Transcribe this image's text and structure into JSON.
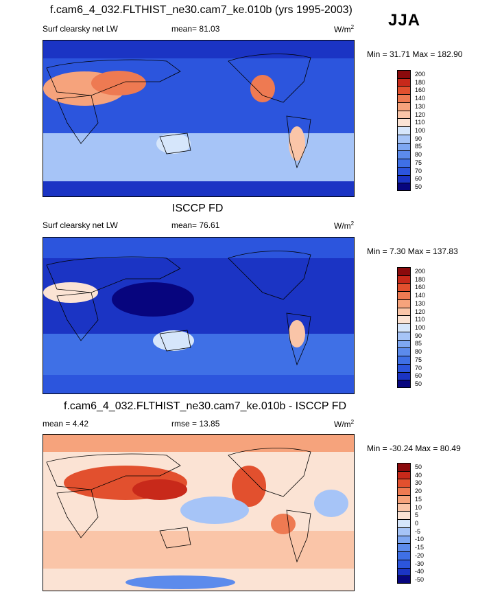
{
  "figure": {
    "season": "JJA",
    "top_title": "f.cam6_4_032.FLTHIST_ne30.cam7_ke.010b (yrs 1995-2003)",
    "mid_title": "ISCCP FD",
    "bottom_title": "f.cam6_4_032.FLTHIST_ne30.cam7_ke.010b - ISCCP FD"
  },
  "panels": [
    {
      "left_label": "Surf clearsky net LW",
      "center_label": "mean=  81.03",
      "units": "W/m",
      "units_exp": "2",
      "minmax": "Min =  31.71 Max = 182.90"
    },
    {
      "left_label": "Surf clearsky net LW",
      "center_label": "mean=  76.61",
      "units": "W/m",
      "units_exp": "2",
      "minmax": "Min =   7.30 Max = 137.83"
    },
    {
      "left_label": "mean =   4.42",
      "center_label": "rmse =  13.85",
      "units": "W/m",
      "units_exp": "2",
      "minmax": "Min = -30.24 Max =  80.49"
    }
  ],
  "chart_data": [
    {
      "type": "heatmap",
      "title": "f.cam6_4_032.FLTHIST_ne30.cam7_ke.010b (yrs 1995-2003)",
      "variable": "Surf clearsky net LW",
      "units": "W/m2",
      "mean": 81.03,
      "min": 31.71,
      "max": 182.9,
      "levels": [
        50,
        60,
        70,
        75,
        80,
        85,
        90,
        100,
        110,
        120,
        130,
        140,
        160,
        180,
        200
      ],
      "colors": [
        "#07057e",
        "#1b34c4",
        "#2c55dd",
        "#3f70e6",
        "#5c8bec",
        "#7ea7f2",
        "#a6c4f7",
        "#d6e6fb",
        "#fbe3d4",
        "#fac5a8",
        "#f6a37c",
        "#ee7a52",
        "#e2502e",
        "#c8291a",
        "#8b0a0c"
      ]
    },
    {
      "type": "heatmap",
      "title": "ISCCP FD",
      "variable": "Surf clearsky net LW",
      "units": "W/m2",
      "mean": 76.61,
      "min": 7.3,
      "max": 137.83,
      "levels": [
        50,
        60,
        70,
        75,
        80,
        85,
        90,
        100,
        110,
        120,
        130,
        140,
        160,
        180,
        200
      ],
      "colors": [
        "#07057e",
        "#1b34c4",
        "#2c55dd",
        "#3f70e6",
        "#5c8bec",
        "#7ea7f2",
        "#a6c4f7",
        "#d6e6fb",
        "#fbe3d4",
        "#fac5a8",
        "#f6a37c",
        "#ee7a52",
        "#e2502e",
        "#c8291a",
        "#8b0a0c"
      ]
    },
    {
      "type": "heatmap",
      "title": "f.cam6_4_032.FLTHIST_ne30.cam7_ke.010b - ISCCP FD",
      "variable": "difference",
      "units": "W/m2",
      "mean": 4.42,
      "rmse": 13.85,
      "min": -30.24,
      "max": 80.49,
      "levels": [
        -50,
        -40,
        -30,
        -20,
        -15,
        -10,
        -5,
        0,
        5,
        10,
        15,
        20,
        30,
        40,
        50
      ],
      "colors": [
        "#07057e",
        "#1b34c4",
        "#2c55dd",
        "#3f70e6",
        "#5c8bec",
        "#7ea7f2",
        "#a6c4f7",
        "#d6e6fb",
        "#fbe3d4",
        "#fac5a8",
        "#f6a37c",
        "#ee7a52",
        "#e2502e",
        "#c8291a",
        "#8b0a0c"
      ]
    }
  ]
}
